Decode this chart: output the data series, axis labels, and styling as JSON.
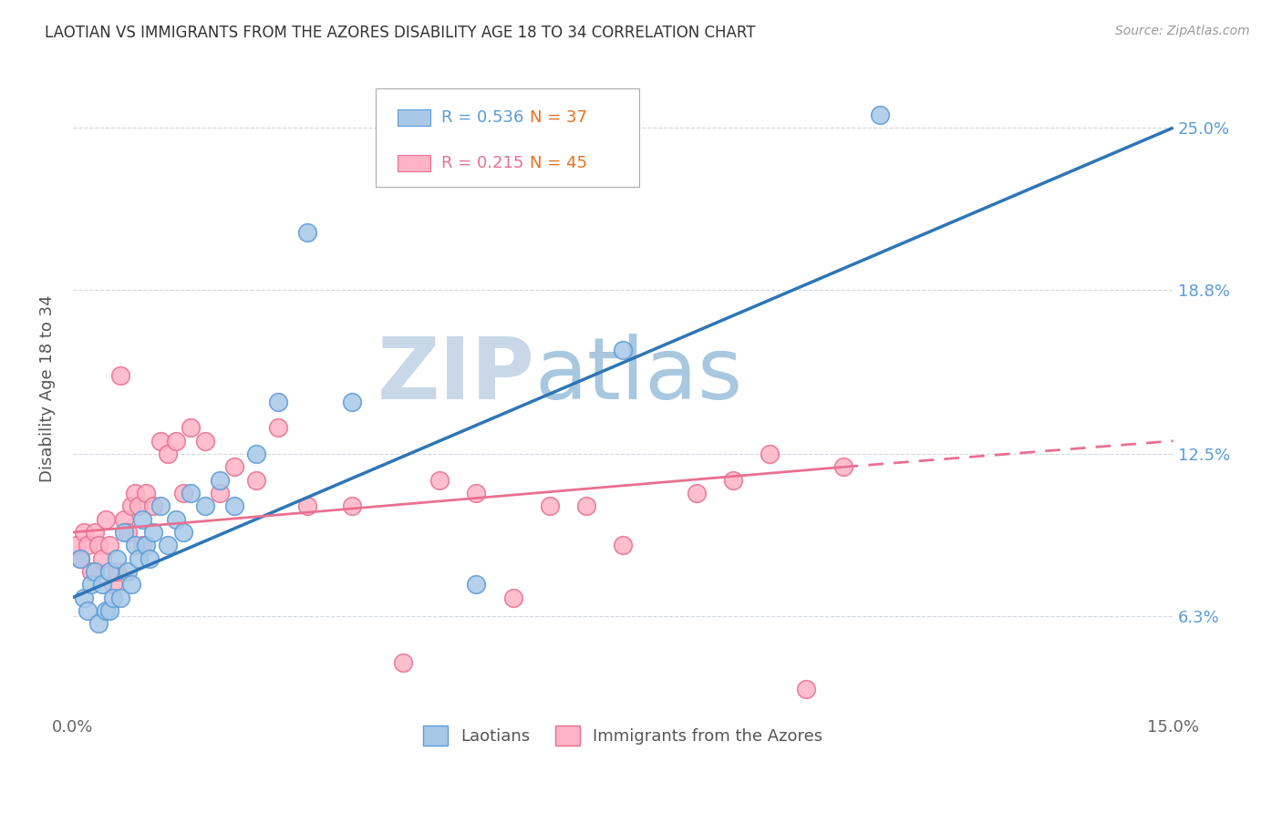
{
  "title": "LAOTIAN VS IMMIGRANTS FROM THE AZORES DISABILITY AGE 18 TO 34 CORRELATION CHART",
  "source": "Source: ZipAtlas.com",
  "ylabel": "Disability Age 18 to 34",
  "xlim": [
    0.0,
    15.0
  ],
  "ylim": [
    2.5,
    27.5
  ],
  "xtick_values": [
    0.0,
    15.0
  ],
  "xtick_labels": [
    "0.0%",
    "15.0%"
  ],
  "ytick_labels": [
    "6.3%",
    "12.5%",
    "18.8%",
    "25.0%"
  ],
  "ytick_values": [
    6.3,
    12.5,
    18.8,
    25.0
  ],
  "legend_r1": "R = 0.536",
  "legend_n1": "N = 37",
  "legend_r2": "R = 0.215",
  "legend_n2": "N = 45",
  "series1_name": "Laotians",
  "series1_color": "#a8c8e8",
  "series1_border": "#5b9bd5",
  "series2_name": "Immigrants from the Azores",
  "series2_color": "#ffb3c6",
  "series2_border": "#e87090",
  "trend1_color": "#2e75b6",
  "trend2_color": "#e87090",
  "watermark_zip": "ZIP",
  "watermark_atlas": "atlas",
  "watermark_zip_color": "#c8d8e8",
  "watermark_atlas_color": "#a8c8e0",
  "background_color": "#ffffff",
  "grid_color": "#d0d8e0",
  "laotians_x": [
    0.1,
    0.15,
    0.2,
    0.25,
    0.3,
    0.35,
    0.4,
    0.45,
    0.5,
    0.5,
    0.55,
    0.6,
    0.65,
    0.7,
    0.75,
    0.8,
    0.85,
    0.9,
    0.95,
    1.0,
    1.05,
    1.1,
    1.2,
    1.3,
    1.4,
    1.5,
    1.6,
    1.8,
    2.0,
    2.2,
    2.5,
    2.8,
    3.2,
    3.8,
    5.5,
    7.5,
    11.0
  ],
  "laotians_y": [
    8.5,
    7.0,
    6.5,
    7.5,
    8.0,
    6.0,
    7.5,
    6.5,
    8.0,
    6.5,
    7.0,
    8.5,
    7.0,
    9.5,
    8.0,
    7.5,
    9.0,
    8.5,
    10.0,
    9.0,
    8.5,
    9.5,
    10.5,
    9.0,
    10.0,
    9.5,
    11.0,
    10.5,
    11.5,
    10.5,
    12.5,
    14.5,
    21.0,
    14.5,
    7.5,
    16.5,
    25.5
  ],
  "azores_x": [
    0.05,
    0.1,
    0.15,
    0.2,
    0.25,
    0.3,
    0.35,
    0.4,
    0.45,
    0.5,
    0.55,
    0.6,
    0.65,
    0.7,
    0.75,
    0.8,
    0.85,
    0.9,
    0.95,
    1.0,
    1.1,
    1.2,
    1.3,
    1.4,
    1.5,
    1.6,
    1.8,
    2.0,
    2.2,
    2.5,
    2.8,
    3.2,
    3.8,
    4.5,
    5.0,
    5.5,
    6.0,
    6.5,
    7.0,
    7.5,
    8.5,
    9.0,
    9.5,
    10.0,
    10.5
  ],
  "azores_y": [
    9.0,
    8.5,
    9.5,
    9.0,
    8.0,
    9.5,
    9.0,
    8.5,
    10.0,
    9.0,
    7.5,
    8.0,
    15.5,
    10.0,
    9.5,
    10.5,
    11.0,
    10.5,
    9.0,
    11.0,
    10.5,
    13.0,
    12.5,
    13.0,
    11.0,
    13.5,
    13.0,
    11.0,
    12.0,
    11.5,
    13.5,
    10.5,
    10.5,
    4.5,
    11.5,
    11.0,
    7.0,
    10.5,
    10.5,
    9.0,
    11.0,
    11.5,
    12.5,
    3.5,
    12.0
  ],
  "trend1_x0": 0.0,
  "trend1_y0": 7.0,
  "trend1_x1": 15.0,
  "trend1_y1": 25.0,
  "trend2_solid_x0": 0.0,
  "trend2_solid_y0": 9.5,
  "trend2_solid_x1": 10.5,
  "trend2_solid_y1": 12.0,
  "trend2_dash_x0": 10.5,
  "trend2_dash_y0": 12.0,
  "trend2_dash_x1": 15.0,
  "trend2_dash_y1": 13.0
}
